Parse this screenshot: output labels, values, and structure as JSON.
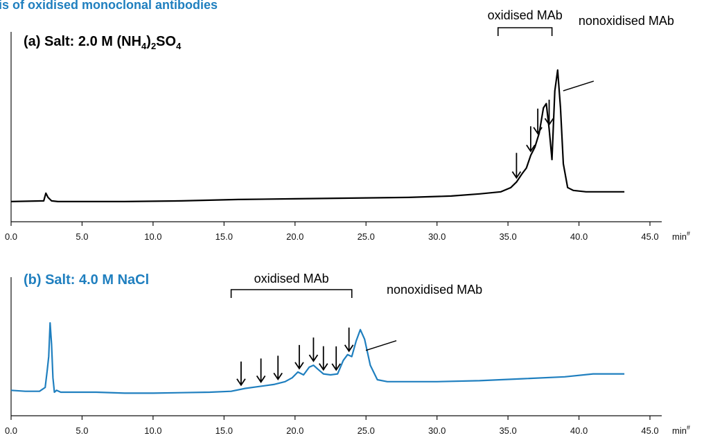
{
  "figure": {
    "title": "ysis of oxidised monoclonal antibodies",
    "title_color": "#1f7fbf"
  },
  "chart_data": [
    {
      "type": "line",
      "panel_label": "(a) Salt: 2.0 M (NH",
      "panel_label_sub1": "4",
      "panel_label_mid": ")",
      "panel_label_sub2": "2",
      "panel_label_tail": "SO",
      "panel_label_sub3": "4",
      "label_color": "#000000",
      "series_color": "#000000",
      "x_unit": "min",
      "x_unit_sup": "#",
      "xlim": [
        0,
        45
      ],
      "x_ticks": [
        "0.0",
        "5.0",
        "10.0",
        "15.0",
        "20.0",
        "25.0",
        "30.0",
        "35.0",
        "40.0",
        "45.0"
      ],
      "ylim": [
        0,
        1
      ],
      "series": [
        {
          "x": [
            0,
            2.3,
            2.45,
            2.6,
            2.85,
            3.3,
            5,
            8,
            12,
            16,
            20,
            24,
            28,
            31,
            33,
            34.5,
            35.2,
            35.6,
            36.0,
            36.3,
            36.6,
            36.9,
            37.2,
            37.5,
            37.7,
            37.9,
            38.1,
            38.3,
            38.5,
            38.7,
            38.9,
            39.2,
            39.6,
            40.5,
            42,
            43.2
          ],
          "y": [
            0.03,
            0.035,
            0.09,
            0.06,
            0.035,
            0.03,
            0.03,
            0.03,
            0.035,
            0.045,
            0.05,
            0.055,
            0.06,
            0.07,
            0.085,
            0.1,
            0.13,
            0.17,
            0.23,
            0.27,
            0.36,
            0.42,
            0.52,
            0.7,
            0.73,
            0.55,
            0.33,
            0.82,
            0.97,
            0.7,
            0.3,
            0.13,
            0.11,
            0.1,
            0.1,
            0.1
          ]
        }
      ],
      "annotations": {
        "bracket_label": "oxidised MAb",
        "peak_label": "nonoxidised MAb",
        "bracket_x": [
          34.3,
          38.1
        ],
        "arrows_x": [
          35.6,
          36.6,
          37.1,
          37.9
        ],
        "peak_x": 38.5
      }
    },
    {
      "type": "line",
      "panel_label": "(b) Salt: 4.0 M NaCl",
      "label_color": "#1f7fbf",
      "series_color": "#1f7fbf",
      "x_unit": "min",
      "x_unit_sup": "#",
      "xlim": [
        0,
        45
      ],
      "x_ticks": [
        "0.0",
        "5.0",
        "10.0",
        "15.0",
        "20.0",
        "25.0",
        "30.0",
        "35.0",
        "40.0",
        "45.0"
      ],
      "ylim": [
        0,
        1
      ],
      "series": [
        {
          "x": [
            0,
            1,
            2,
            2.4,
            2.55,
            2.65,
            2.75,
            2.85,
            2.95,
            3.05,
            3.2,
            3.5,
            4.5,
            6,
            8,
            10,
            12,
            14,
            15.5,
            16.5,
            17.5,
            18.5,
            19.3,
            19.8,
            20.2,
            20.6,
            21.0,
            21.3,
            21.6,
            22.0,
            22.5,
            23.0,
            23.4,
            23.7,
            24.0,
            24.3,
            24.6,
            24.9,
            25.3,
            25.8,
            26.5,
            28,
            30,
            33,
            36,
            39,
            41,
            43.2
          ],
          "y": [
            0.07,
            0.06,
            0.06,
            0.1,
            0.28,
            0.42,
            0.77,
            0.55,
            0.2,
            0.05,
            0.07,
            0.05,
            0.05,
            0.05,
            0.04,
            0.04,
            0.045,
            0.05,
            0.06,
            0.09,
            0.11,
            0.13,
            0.16,
            0.2,
            0.26,
            0.23,
            0.31,
            0.33,
            0.29,
            0.24,
            0.23,
            0.24,
            0.38,
            0.44,
            0.42,
            0.58,
            0.7,
            0.6,
            0.33,
            0.18,
            0.16,
            0.16,
            0.16,
            0.17,
            0.19,
            0.21,
            0.24,
            0.24
          ]
        }
      ],
      "annotations": {
        "bracket_label": "oxidised MAb",
        "peak_label": "nonoxidised MAb",
        "bracket_x": [
          15.5,
          24.0
        ],
        "arrows_x": [
          16.2,
          17.6,
          18.8,
          20.3,
          21.3,
          22.0,
          22.9,
          23.8
        ],
        "peak_x": 24.6
      }
    }
  ]
}
